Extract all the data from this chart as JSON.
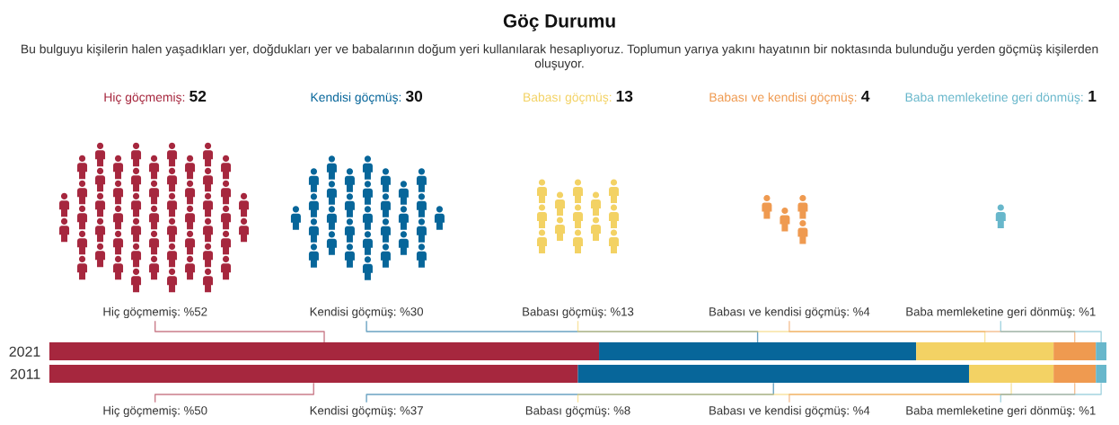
{
  "chart_data": [
    {
      "type": "other",
      "title": "Göç Durumu",
      "subtitle": "Bu bulguyu kişilerin halen yaşadıkları yer, doğdukları yer ve babalarının doğum yeri kullanılarak hesaplıyoruz. Toplumun yarıya yakını hayatının bir noktasında bulunduğu yerden göçmüş kişilerden oluşuyor.",
      "values": [
        52,
        30,
        13,
        4,
        1
      ],
      "value_labels": [
        "Hiç göçmemiş: 52",
        "Kendisi göçmüş: 30",
        "Babası göçmüş: 13",
        "Babası ve kendisi göçmüş: 4",
        "Baba memleketine geri dönmüş: 1"
      ],
      "colors": [
        "#a6273e",
        "#07669a",
        "#f3d264",
        "#ef9a50",
        "#68b7cb"
      ]
    },
    {
      "type": "bar",
      "orientation": "horizontal",
      "stacked": true,
      "categories": [
        "2021",
        "2011"
      ],
      "series": [
        {
          "color": "#a6273e",
          "values": [
            52,
            50
          ],
          "value_labels": [
            "Hiç göçmemiş: %52",
            "Hiç göçmemiş: %50"
          ]
        },
        {
          "color": "#07669a",
          "values": [
            30,
            37
          ],
          "value_labels": [
            "Kendisi göçmüş: %30",
            "Kendisi göçmüş: %37"
          ]
        },
        {
          "color": "#f3d264",
          "values": [
            13,
            8
          ],
          "value_labels": [
            "Babası göçmüş: %13",
            "Babası göçmüş: %8"
          ]
        },
        {
          "color": "#ef9a50",
          "values": [
            4,
            4
          ],
          "value_labels": [
            "Babası ve kendisi göçmüş: %4",
            "Babası ve kendisi göçmüş: %4"
          ]
        },
        {
          "color": "#68b7cb",
          "values": [
            1,
            1
          ],
          "value_labels": [
            "Baba memleketine geri dönmüş: %1",
            "Baba memleketine geri dönmüş: %1"
          ]
        }
      ],
      "xlim": [
        0,
        100
      ],
      "tick_labels": "y"
    }
  ]
}
